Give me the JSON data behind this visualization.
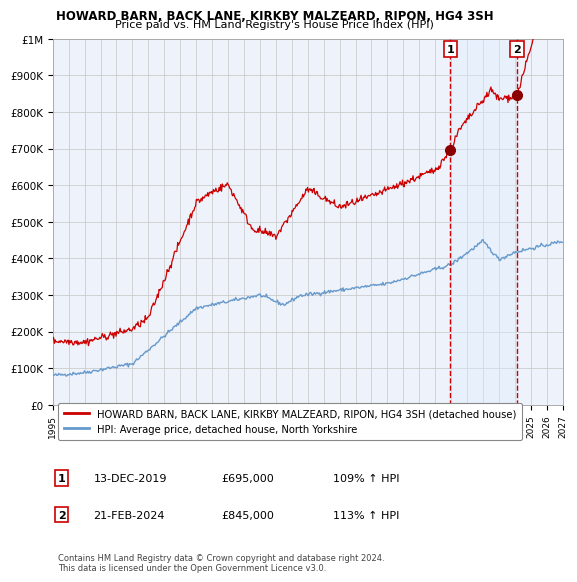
{
  "title": "HOWARD BARN, BACK LANE, KIRKBY MALZEARD, RIPON, HG4 3SH",
  "subtitle": "Price paid vs. HM Land Registry's House Price Index (HPI)",
  "legend_line1": "HOWARD BARN, BACK LANE, KIRKBY MALZEARD, RIPON, HG4 3SH (detached house)",
  "legend_line2": "HPI: Average price, detached house, North Yorkshire",
  "transaction1_date": "13-DEC-2019",
  "transaction1_price": "£695,000",
  "transaction1_hpi": "109% ↑ HPI",
  "transaction1_year": 2019.95,
  "transaction1_value": 695000,
  "transaction2_date": "21-FEB-2024",
  "transaction2_price": "£845,000",
  "transaction2_hpi": "113% ↑ HPI",
  "transaction2_year": 2024.13,
  "transaction2_value": 845000,
  "hpi_color": "#6699cc",
  "price_color": "#cc0000",
  "dot_color": "#8b0000",
  "vline_color": "#cc0000",
  "shade_color": "#ddeeff",
  "grid_color": "#cccccc",
  "bg_color": "#eef2fa",
  "xlim": [
    1995,
    2027
  ],
  "ylim": [
    0,
    1000000
  ],
  "yticks": [
    0,
    100000,
    200000,
    300000,
    400000,
    500000,
    600000,
    700000,
    800000,
    900000,
    1000000
  ],
  "yticklabels": [
    "£0",
    "£100K",
    "£200K",
    "£300K",
    "£400K",
    "£500K",
    "£600K",
    "£700K",
    "£800K",
    "£900K",
    "£1M"
  ],
  "copyright": "Contains HM Land Registry data © Crown copyright and database right 2024.\nThis data is licensed under the Open Government Licence v3.0."
}
